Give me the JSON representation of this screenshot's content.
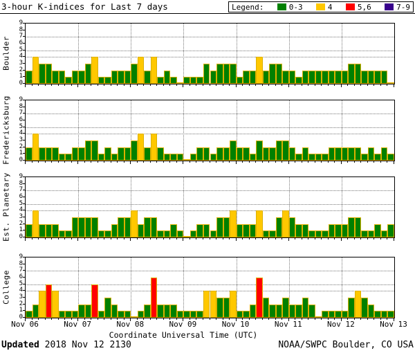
{
  "header": {
    "title": "3-hour K-indices for Last 7 days",
    "legend_label": "Legend:",
    "legend": [
      {
        "label": "0-3",
        "color": "#008000"
      },
      {
        "label": "4",
        "color": "#ffc800"
      },
      {
        "label": "5,6",
        "color": "#ff0000"
      },
      {
        "label": "7-9",
        "color": "#38008c"
      }
    ]
  },
  "chart_data": {
    "type": "bar",
    "ylim": [
      0,
      9
    ],
    "y_ticks": [
      0,
      1,
      2,
      3,
      4,
      5,
      6,
      7,
      8,
      9
    ],
    "grid_y_levels": [
      4,
      5,
      7
    ],
    "bars_per_day": 8,
    "interval_hours": 3,
    "x_tick_labels": [
      "Nov 06",
      "Nov 07",
      "Nov 08",
      "Nov 09",
      "Nov 10",
      "Nov 11",
      "Nov 12",
      "Nov 13"
    ],
    "xlabel": "Coordinate Universal Time (UTC)",
    "color_rule": {
      "0-3": "green",
      "4": "yellow",
      "5-6": "red",
      "7-9": "purple"
    },
    "colors": {
      "green": "#008000",
      "yellow": "#ffc800",
      "red": "#ff0000",
      "purple": "#38008c",
      "bar_outline": "#dcb000"
    },
    "panels": [
      {
        "station": "Boulder",
        "values": [
          2,
          4,
          3,
          3,
          2,
          2,
          1,
          2,
          2,
          3,
          4,
          1,
          1,
          2,
          2,
          2,
          3,
          4,
          2,
          4,
          1,
          2,
          1,
          0,
          1,
          1,
          1,
          3,
          2,
          3,
          3,
          3,
          1,
          2,
          2,
          4,
          2,
          3,
          3,
          2,
          2,
          1,
          2,
          2,
          2,
          2,
          2,
          2,
          2,
          3,
          3,
          2,
          2,
          2,
          2,
          0
        ]
      },
      {
        "station": "Fredericksburg",
        "values": [
          2,
          4,
          2,
          2,
          2,
          1,
          1,
          2,
          2,
          3,
          3,
          1,
          2,
          1,
          2,
          2,
          3,
          4,
          2,
          4,
          2,
          1,
          1,
          1,
          0,
          1,
          2,
          2,
          1,
          2,
          2,
          3,
          2,
          2,
          1,
          3,
          2,
          2,
          3,
          3,
          2,
          1,
          2,
          1,
          1,
          1,
          2,
          2,
          2,
          2,
          2,
          1,
          2,
          1,
          2,
          1
        ]
      },
      {
        "station": "Est. Planetary",
        "values": [
          2,
          4,
          2,
          2,
          2,
          1,
          1,
          3,
          3,
          3,
          3,
          1,
          1,
          2,
          3,
          3,
          4,
          2,
          3,
          3,
          1,
          1,
          2,
          1,
          0,
          1,
          2,
          2,
          1,
          3,
          3,
          4,
          2,
          2,
          2,
          4,
          1,
          1,
          3,
          4,
          3,
          2,
          2,
          1,
          1,
          1,
          2,
          2,
          2,
          3,
          3,
          1,
          1,
          2,
          1,
          2
        ]
      },
      {
        "station": "College",
        "values": [
          1,
          2,
          4,
          5,
          4,
          1,
          1,
          1,
          2,
          2,
          5,
          1,
          3,
          2,
          1,
          1,
          0,
          1,
          2,
          6,
          2,
          2,
          2,
          1,
          1,
          1,
          1,
          4,
          4,
          3,
          3,
          4,
          1,
          1,
          2,
          6,
          3,
          2,
          2,
          3,
          2,
          2,
          3,
          2,
          0,
          1,
          1,
          1,
          1,
          3,
          4,
          3,
          2,
          1,
          1,
          1
        ]
      }
    ]
  },
  "footer": {
    "updated_label": "Updated",
    "updated_value": " 2018 Nov 12 2130",
    "source": "NOAA/SWPC Boulder, CO USA"
  }
}
